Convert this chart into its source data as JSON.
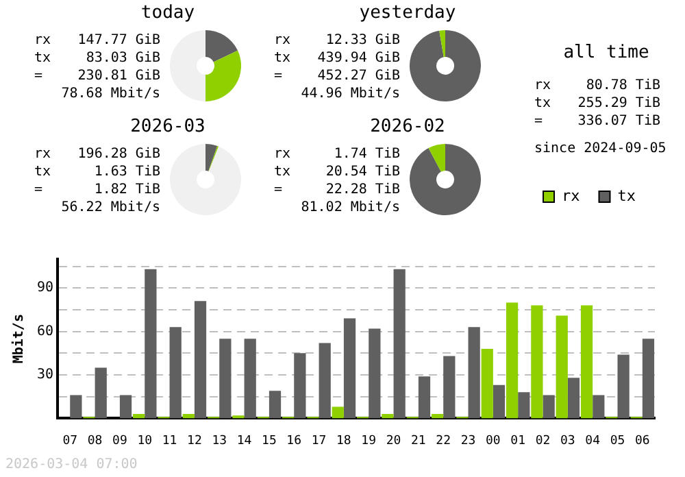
{
  "chart_data": [
    {
      "type": "donut",
      "title": "today",
      "categories": [
        null,
        null,
        null
      ],
      "values": [
        18,
        32,
        50
      ],
      "colors": [
        "#606060",
        "#90cf00",
        "#f0f0f0"
      ],
      "annotations": [
        "rx 147.77 GiB",
        "tx 83.03 GiB",
        "= 230.81 GiB",
        "78.68 Mbit/s"
      ],
      "legend": false
    },
    {
      "type": "donut",
      "title": "yesterday",
      "categories": [
        null,
        null,
        null
      ],
      "values": [
        97.3,
        2.7,
        0
      ],
      "colors": [
        "#606060",
        "#90cf00",
        "#f0f0f0"
      ],
      "annotations": [
        "rx 12.33 GiB",
        "tx 439.94 GiB",
        "= 452.27 GiB",
        "44.96 Mbit/s"
      ],
      "legend": false
    },
    {
      "type": "other",
      "title": "all time",
      "annotations": [
        "rx 80.78 TiB",
        "tx 255.29 TiB",
        "= 336.07 TiB",
        "since 2024-09-05"
      ]
    },
    {
      "type": "donut",
      "title": "2026-03",
      "categories": [
        null,
        null,
        null
      ],
      "values": [
        5.4,
        0.6,
        94
      ],
      "colors": [
        "#606060",
        "#90cf00",
        "#f0f0f0"
      ],
      "annotations": [
        "rx 196.28 GiB",
        "tx 1.63 TiB",
        "= 1.82 TiB",
        "56.22 Mbit/s"
      ],
      "legend": false
    },
    {
      "type": "donut",
      "title": "2026-02",
      "categories": [
        null,
        null,
        null
      ],
      "values": [
        92.2,
        7.8,
        0
      ],
      "colors": [
        "#606060",
        "#90cf00",
        "#f0f0f0"
      ],
      "annotations": [
        "rx 1.74 TiB",
        "tx 20.54 TiB",
        "= 22.28 TiB",
        "81.02 Mbit/s"
      ],
      "legend": false
    },
    {
      "type": "bar",
      "ylabel": "Mbit/s",
      "categories": [
        "07",
        "08",
        "09",
        "10",
        "11",
        "12",
        "13",
        "14",
        "15",
        "16",
        "17",
        "18",
        "19",
        "20",
        "21",
        "22",
        "23",
        "00",
        "01",
        "02",
        "03",
        "04",
        "05",
        "06"
      ],
      "series": [
        {
          "name": "rx",
          "color": "#90cf00",
          "values": [
            0,
            1,
            0,
            3,
            1,
            3,
            1,
            2,
            1,
            1,
            1,
            8,
            1,
            3,
            1,
            3,
            1,
            48,
            80,
            78,
            71,
            78,
            1,
            1
          ]
        },
        {
          "name": "tx",
          "color": "#606060",
          "values": [
            16,
            35,
            16,
            103,
            63,
            81,
            55,
            55,
            19,
            45,
            52,
            69,
            62,
            103,
            29,
            43,
            63,
            23,
            18,
            16,
            28,
            16,
            44,
            55
          ]
        }
      ],
      "ylim": [
        0,
        110
      ],
      "yticks": [
        {
          "value": 15,
          "label": null
        },
        30,
        {
          "value": 45,
          "label": null
        },
        60,
        {
          "value": 75,
          "label": null
        },
        90,
        {
          "value": 105,
          "label": null
        }
      ],
      "grid": "y",
      "legend": "top right",
      "annotations": [
        "2026-03-04 07:00"
      ]
    }
  ]
}
